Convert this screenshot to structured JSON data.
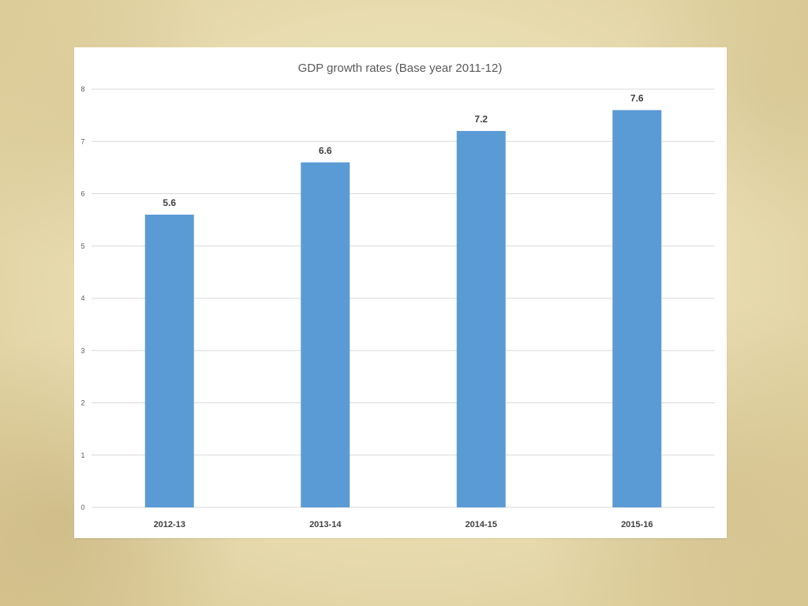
{
  "chart_data": {
    "type": "bar",
    "title": "GDP growth rates (Base year 2011-12)",
    "xlabel": "",
    "ylabel": "",
    "categories": [
      "2012-13",
      "2013-14",
      "2014-15",
      "2015-16"
    ],
    "values": [
      5.6,
      6.6,
      7.2,
      7.6
    ],
    "data_labels": [
      "5.6",
      "6.6",
      "7.2",
      "7.6"
    ],
    "ylim": [
      0,
      8
    ],
    "yticks": [
      "0",
      "1",
      "2",
      "3",
      "4",
      "5",
      "6",
      "7",
      "8"
    ],
    "grid": true,
    "legend": "none",
    "bar_color": "#5b9bd5"
  }
}
